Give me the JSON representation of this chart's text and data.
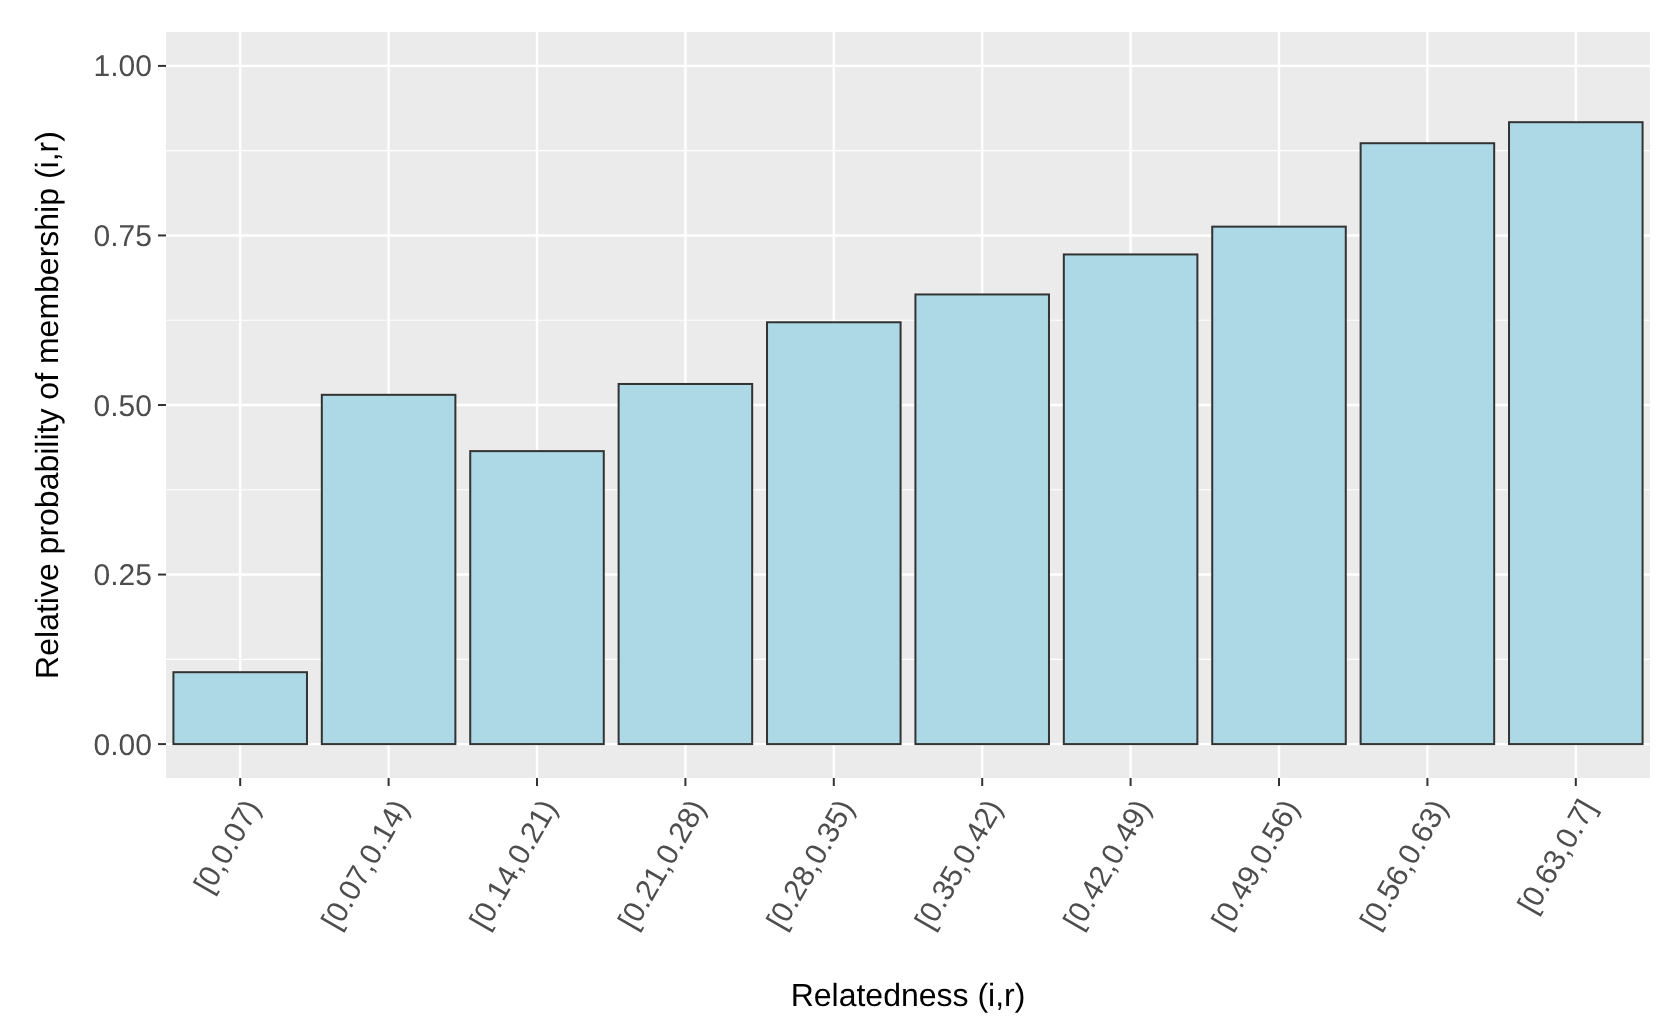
{
  "chart_data": {
    "type": "bar",
    "xlabel": "Relatedness (i,r)",
    "ylabel": "Relative probability of membership (i,r)",
    "categories": [
      "[0,0.07)",
      "[0.07,0.14)",
      "[0.14,0.21)",
      "[0.21,0.28)",
      "[0.28,0.35)",
      "[0.35,0.42)",
      "[0.42,0.49)",
      "[0.49,0.56)",
      "[0.56,0.63)",
      "[0.63,0.7]"
    ],
    "values": [
      0.106,
      0.515,
      0.432,
      0.531,
      0.622,
      0.663,
      0.722,
      0.763,
      0.886,
      0.917
    ],
    "color": "#add8e6",
    "ylim": [
      -0.05,
      1.05
    ],
    "yticks": [
      {
        "value": 0,
        "label": "0.00"
      },
      {
        "value": 0.25,
        "label": "0.25"
      },
      {
        "value": 0.5,
        "label": "0.50"
      },
      {
        "value": 0.75,
        "label": "0.75"
      },
      {
        "value": 1,
        "label": "1.00"
      }
    ],
    "grid": true
  }
}
